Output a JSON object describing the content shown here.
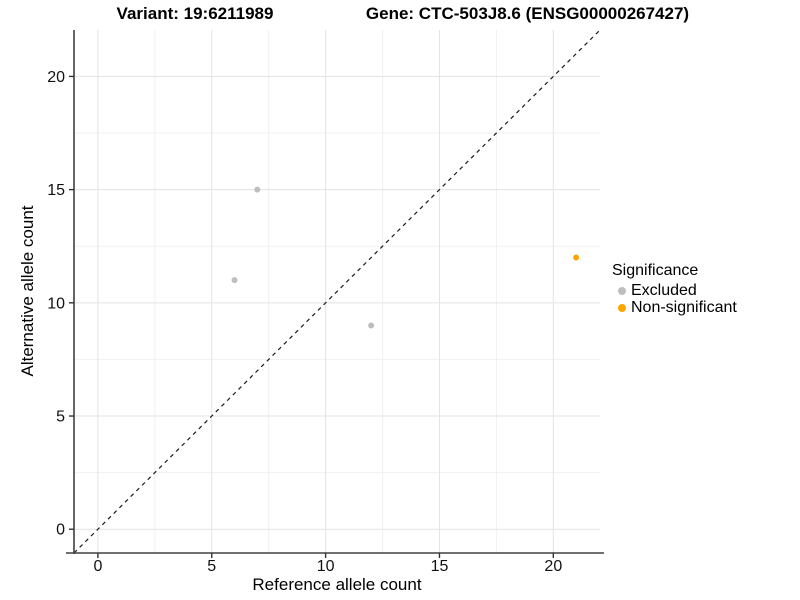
{
  "titles": {
    "variant": "Variant: 19:6211989",
    "gene": "Gene: CTC-503J8.6 (ENSG00000267427)"
  },
  "chart_data": {
    "type": "scatter",
    "xlabel": "Reference allele count",
    "ylabel": "Alternative allele count",
    "xlim": [
      -1.05,
      22.05
    ],
    "ylim": [
      -1.05,
      22.05
    ],
    "xticks": [
      0,
      5,
      10,
      15,
      20
    ],
    "yticks": [
      0,
      5,
      10,
      15,
      20
    ],
    "minor_ticks": [
      2.5,
      7.5,
      12.5,
      17.5
    ],
    "grid": true,
    "identity_line": {
      "style": "dashed",
      "color": "#1a1a1a",
      "equation": "y = x"
    },
    "series": [
      {
        "name": "Excluded",
        "color": "#BEBEBE",
        "points": [
          [
            7,
            15
          ],
          [
            6,
            11
          ],
          [
            12,
            9
          ]
        ]
      },
      {
        "name": "Non-significant",
        "color": "#FFA500",
        "points": [
          [
            21,
            12
          ]
        ]
      }
    ],
    "legend": {
      "title": "Significance",
      "position": "right"
    }
  },
  "colors": {
    "excluded": "#BEBEBE",
    "non_significant": "#FFA500",
    "grid_major": "#E3E3E3",
    "grid_minor": "#F0F0F0",
    "axis_line": "#404040"
  }
}
